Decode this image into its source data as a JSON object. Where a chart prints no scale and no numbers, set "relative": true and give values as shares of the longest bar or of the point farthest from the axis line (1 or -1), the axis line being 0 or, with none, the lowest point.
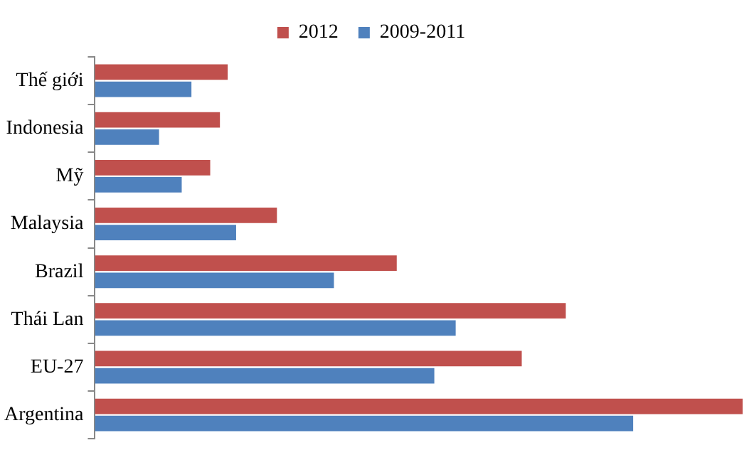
{
  "chart_data": {
    "type": "bar",
    "orientation": "horizontal",
    "relative": true,
    "legend": "top",
    "categories": [
      "Thế giới",
      "Indonesia",
      "Mỹ",
      "Malaysia",
      "Brazil",
      "Thái Lan",
      "EU-27",
      "Argentina"
    ],
    "series": [
      {
        "name": "2012",
        "color": "#c0504d",
        "values": [
          0.205,
          0.193,
          0.178,
          0.281,
          0.466,
          0.727,
          0.659,
          1
        ]
      },
      {
        "name": "2009-2011",
        "color": "#4f81bd",
        "values": [
          0.149,
          0.099,
          0.134,
          0.218,
          0.369,
          0.557,
          0.524,
          0.831
        ]
      }
    ]
  }
}
